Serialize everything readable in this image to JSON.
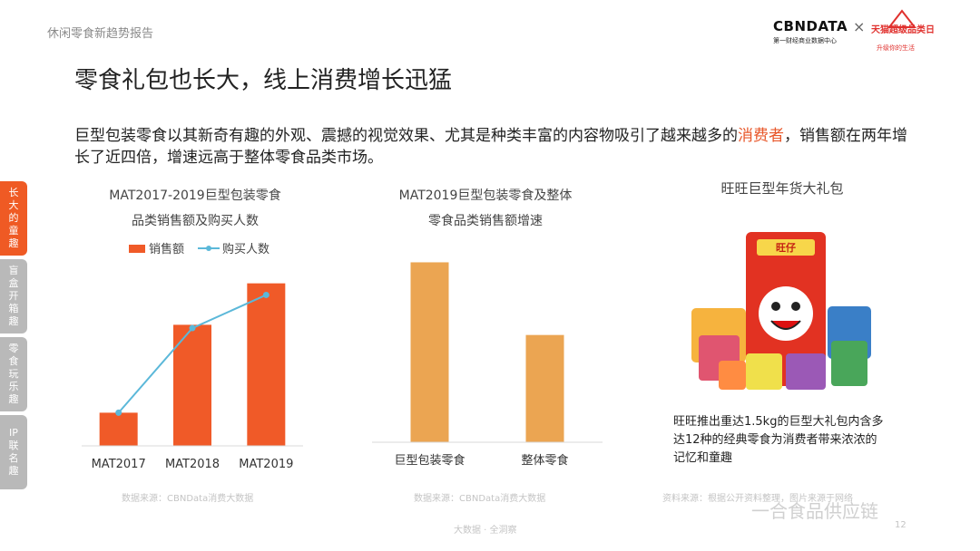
{
  "header": {
    "report_name": "休闲零食新趋势报告",
    "logo_cbn": "CBNDATA",
    "logo_cbn_sub": "第一财经商业数据中心",
    "logo_x": "×",
    "logo_tmall": "天猫超级品类日",
    "logo_tmall_sub": "升级你的生活"
  },
  "title": "零食礼包也长大，线上消费增长迅猛",
  "intro": {
    "before": "巨型包装零食以其新奇有趣的外观、震撼的视觉效果、尤其是种类丰富的内容物吸引了越来越多的",
    "highlight": "消费者",
    "after": "，销售额在两年增长了近四倍，增速远高于整体零食品类市场。"
  },
  "side_tabs": [
    {
      "label": "长大的童趣",
      "active": true
    },
    {
      "label": "盲盒开箱趣",
      "active": false
    },
    {
      "label": "零食玩乐趣",
      "active": false
    },
    {
      "label": "IP联名趣",
      "active": false
    }
  ],
  "chart1_title": [
    "MAT2017-2019巨型包装零食",
    "品类销售额及购买人数"
  ],
  "chart2_title": [
    "MAT2019巨型包装零食及整体",
    "零食品类销售额增速"
  ],
  "product": {
    "title": "旺旺巨型年货大礼包",
    "caption": [
      "旺旺推出重达1.5kg的巨型大礼包内含多",
      "达12种的经典零食为消费者带来浓浓的",
      "记忆和童趣"
    ],
    "bag_label": "旺仔"
  },
  "sources": {
    "chart1": "数据来源：CBNData消费大数据",
    "chart2": "数据来源：CBNData消费大数据",
    "product": "资料来源：根据公开资料整理，图片来源于网络"
  },
  "footer": "大数据 · 全洞察",
  "page_number": "12",
  "watermark": "一合食品供应链",
  "colors": {
    "bar_orange": "#f05a28",
    "line_blue": "#5bb8d9",
    "bar_tan": "#eba552",
    "accent": "#ef5a24"
  },
  "chart_data": [
    {
      "type": "bar",
      "categories": [
        "MAT2017",
        "MAT2018",
        "MAT2019"
      ],
      "series": [
        {
          "name": "销售额",
          "type": "bar",
          "values": [
            1.0,
            3.65,
            4.9
          ]
        },
        {
          "name": "购买人数",
          "type": "line",
          "values": [
            1.0,
            3.55,
            4.55
          ]
        }
      ],
      "legend": "top",
      "ylim": [
        0,
        5.3
      ],
      "grid": false
    },
    {
      "type": "bar",
      "categories": [
        "巨型包装零食",
        "整体零食"
      ],
      "values": [
        5.2,
        3.1
      ],
      "ylim": [
        0,
        5.5
      ],
      "grid": false
    }
  ]
}
